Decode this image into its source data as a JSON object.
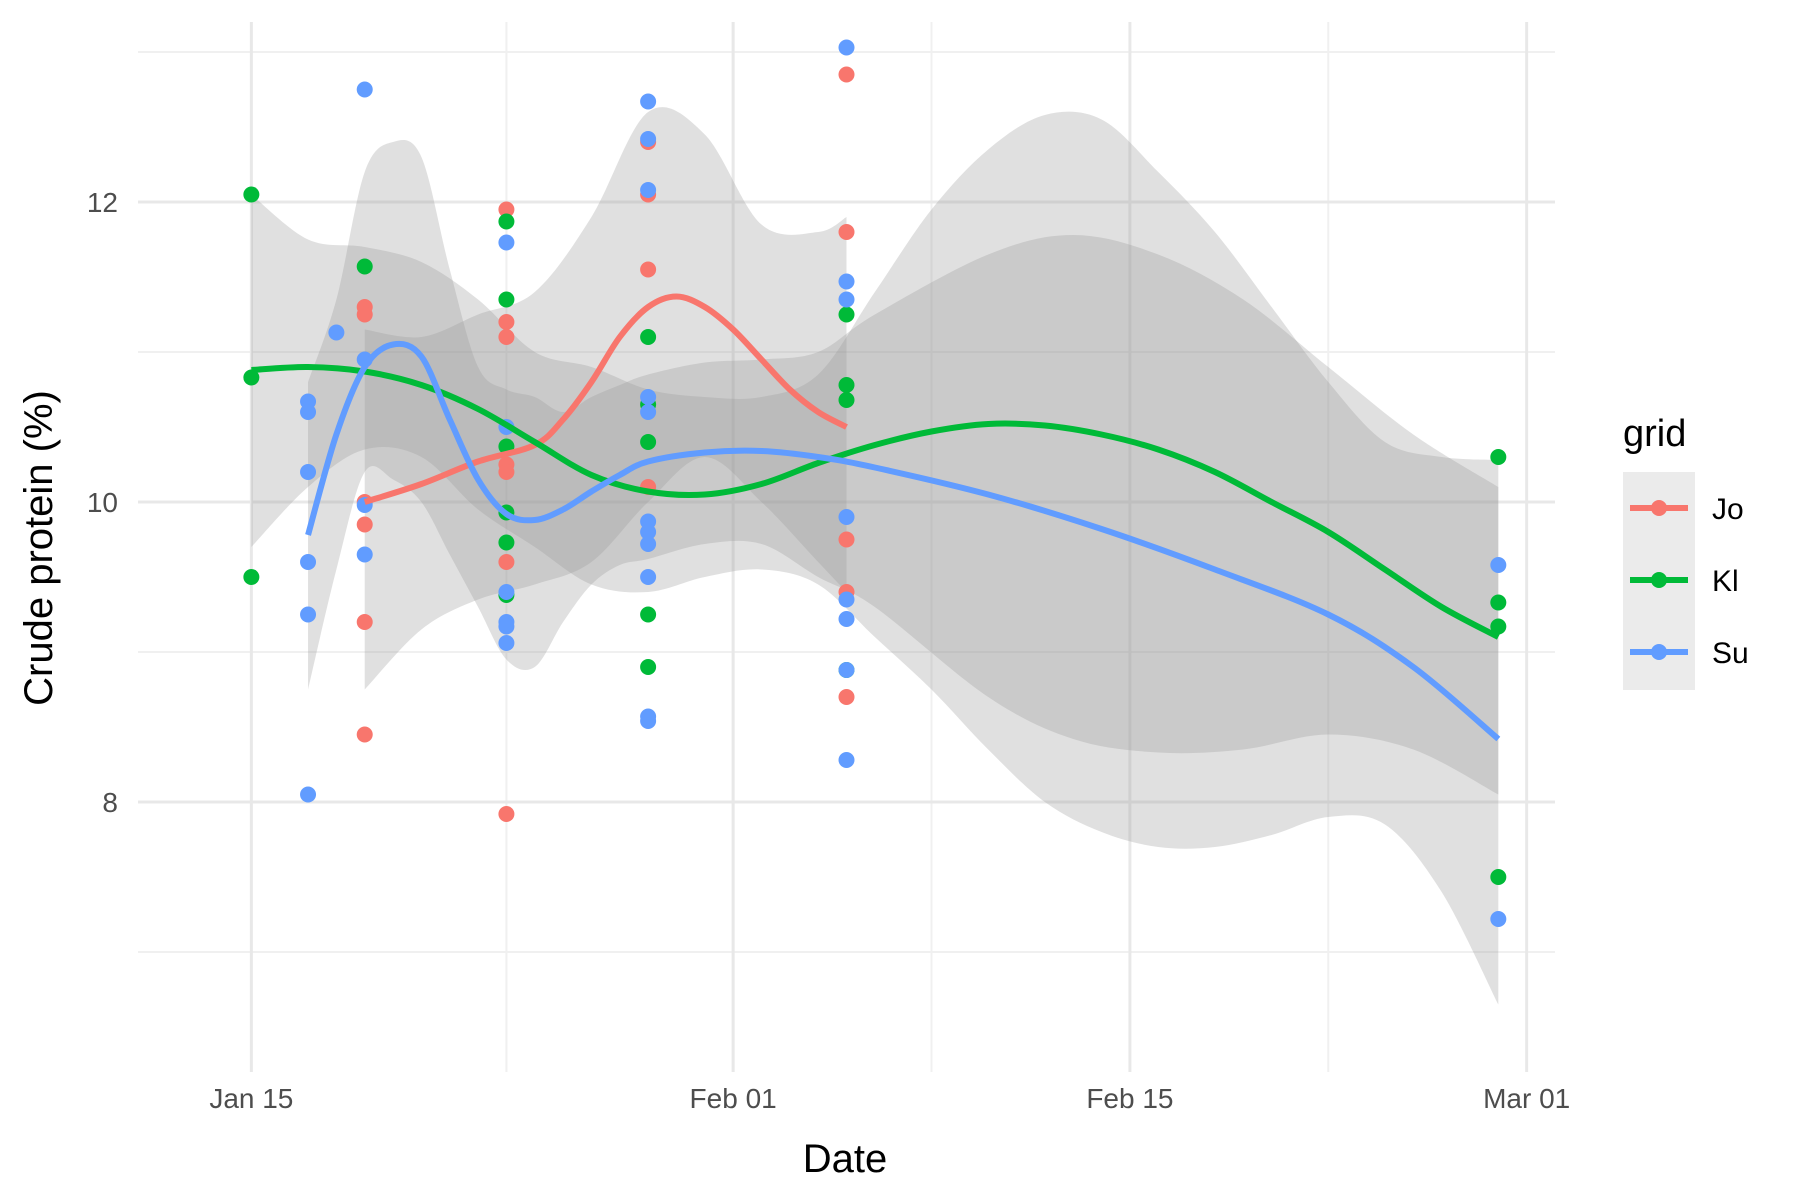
{
  "chart_data": {
    "type": "scatter",
    "title": "",
    "xlabel": "Date",
    "ylabel": "Crude protein (%)",
    "x_type": "date",
    "xlim": [
      "2023-01-11",
      "2023-03-02"
    ],
    "ylim": [
      6.2,
      13.2
    ],
    "x_ticks": [
      {
        "date": "2023-01-15",
        "label": "Jan 15"
      },
      {
        "date": "2023-02-01",
        "label": "Feb 01"
      },
      {
        "date": "2023-02-15",
        "label": "Feb 15"
      },
      {
        "date": "2023-03-01",
        "label": "Mar 01"
      }
    ],
    "x_minor_ticks": [
      "2023-01-24",
      "2023-02-08",
      "2023-02-22"
    ],
    "y_ticks": [
      8,
      10,
      12
    ],
    "y_minor_ticks": [
      7,
      9,
      11,
      13
    ],
    "grid": true,
    "smooth": "loess with confidence band",
    "legend": {
      "title": "grid",
      "position": "right"
    },
    "series": [
      {
        "name": "Jo",
        "color": "#F8766D",
        "points": [
          {
            "x": "2023-01-19",
            "y": 11.3
          },
          {
            "x": "2023-01-19",
            "y": 11.25
          },
          {
            "x": "2023-01-19",
            "y": 10.0
          },
          {
            "x": "2023-01-19",
            "y": 9.85
          },
          {
            "x": "2023-01-19",
            "y": 9.2
          },
          {
            "x": "2023-01-19",
            "y": 8.45
          },
          {
            "x": "2023-01-24",
            "y": 11.95
          },
          {
            "x": "2023-01-24",
            "y": 11.2
          },
          {
            "x": "2023-01-24",
            "y": 11.1
          },
          {
            "x": "2023-01-24",
            "y": 10.25
          },
          {
            "x": "2023-01-24",
            "y": 10.2
          },
          {
            "x": "2023-01-24",
            "y": 9.6
          },
          {
            "x": "2023-01-24",
            "y": 7.92
          },
          {
            "x": "2023-01-29",
            "y": 12.05
          },
          {
            "x": "2023-01-29",
            "y": 11.55
          },
          {
            "x": "2023-01-29",
            "y": 10.1
          },
          {
            "x": "2023-01-29",
            "y": 12.4
          },
          {
            "x": "2023-02-05",
            "y": 12.85
          },
          {
            "x": "2023-02-05",
            "y": 11.8
          },
          {
            "x": "2023-02-05",
            "y": 9.75
          },
          {
            "x": "2023-02-05",
            "y": 9.4
          },
          {
            "x": "2023-02-05",
            "y": 8.7
          }
        ],
        "smooth": [
          {
            "x": "2023-01-19",
            "y": 10.0
          },
          {
            "x": "2023-01-21",
            "y": 10.12
          },
          {
            "x": "2023-01-23",
            "y": 10.27
          },
          {
            "x": "2023-01-25",
            "y": 10.38
          },
          {
            "x": "2023-01-26",
            "y": 10.55
          },
          {
            "x": "2023-01-27",
            "y": 10.8
          },
          {
            "x": "2023-01-28",
            "y": 11.1
          },
          {
            "x": "2023-01-29",
            "y": 11.3
          },
          {
            "x": "2023-01-30",
            "y": 11.37
          },
          {
            "x": "2023-01-31",
            "y": 11.3
          },
          {
            "x": "2023-02-01",
            "y": 11.15
          },
          {
            "x": "2023-02-02",
            "y": 10.95
          },
          {
            "x": "2023-02-03",
            "y": 10.75
          },
          {
            "x": "2023-02-04",
            "y": 10.6
          },
          {
            "x": "2023-02-05",
            "y": 10.5
          }
        ],
        "band": [
          {
            "x": "2023-01-19",
            "lo": 8.75,
            "hi": 11.15
          },
          {
            "x": "2023-01-21",
            "lo": 9.15,
            "hi": 11.1
          },
          {
            "x": "2023-01-23",
            "lo": 9.35,
            "hi": 11.25
          },
          {
            "x": "2023-01-25",
            "lo": 9.45,
            "hi": 11.4
          },
          {
            "x": "2023-01-27",
            "lo": 9.6,
            "hi": 11.9
          },
          {
            "x": "2023-01-29",
            "lo": 10.0,
            "hi": 12.6
          },
          {
            "x": "2023-01-31",
            "lo": 10.3,
            "hi": 12.45
          },
          {
            "x": "2023-02-02",
            "lo": 10.0,
            "hi": 11.85
          },
          {
            "x": "2023-02-04",
            "lo": 9.6,
            "hi": 11.8
          },
          {
            "x": "2023-02-05",
            "lo": 9.4,
            "hi": 11.9
          }
        ]
      },
      {
        "name": "Kl",
        "color": "#00BA38",
        "points": [
          {
            "x": "2023-01-15",
            "y": 12.05
          },
          {
            "x": "2023-01-15",
            "y": 10.83
          },
          {
            "x": "2023-01-15",
            "y": 9.5
          },
          {
            "x": "2023-01-19",
            "y": 11.57
          },
          {
            "x": "2023-01-24",
            "y": 11.87
          },
          {
            "x": "2023-01-24",
            "y": 11.35
          },
          {
            "x": "2023-01-24",
            "y": 10.37
          },
          {
            "x": "2023-01-24",
            "y": 9.93
          },
          {
            "x": "2023-01-24",
            "y": 9.73
          },
          {
            "x": "2023-01-24",
            "y": 9.38
          },
          {
            "x": "2023-01-29",
            "y": 11.1
          },
          {
            "x": "2023-01-29",
            "y": 10.65
          },
          {
            "x": "2023-01-29",
            "y": 10.4
          },
          {
            "x": "2023-01-29",
            "y": 9.25
          },
          {
            "x": "2023-01-29",
            "y": 8.9
          },
          {
            "x": "2023-02-05",
            "y": 11.25
          },
          {
            "x": "2023-02-05",
            "y": 10.78
          },
          {
            "x": "2023-02-05",
            "y": 10.68
          },
          {
            "x": "2023-02-05",
            "y": 8.88
          },
          {
            "x": "2023-02-28",
            "y": 10.3
          },
          {
            "x": "2023-02-28",
            "y": 9.33
          },
          {
            "x": "2023-02-28",
            "y": 9.17
          },
          {
            "x": "2023-02-28",
            "y": 7.5
          }
        ],
        "smooth": [
          {
            "x": "2023-01-15",
            "y": 10.88
          },
          {
            "x": "2023-01-17",
            "y": 10.9
          },
          {
            "x": "2023-01-19",
            "y": 10.87
          },
          {
            "x": "2023-01-21",
            "y": 10.78
          },
          {
            "x": "2023-01-23",
            "y": 10.62
          },
          {
            "x": "2023-01-25",
            "y": 10.4
          },
          {
            "x": "2023-01-27",
            "y": 10.18
          },
          {
            "x": "2023-01-29",
            "y": 10.07
          },
          {
            "x": "2023-01-31",
            "y": 10.05
          },
          {
            "x": "2023-02-02",
            "y": 10.12
          },
          {
            "x": "2023-02-04",
            "y": 10.26
          },
          {
            "x": "2023-02-06",
            "y": 10.38
          },
          {
            "x": "2023-02-08",
            "y": 10.47
          },
          {
            "x": "2023-02-10",
            "y": 10.52
          },
          {
            "x": "2023-02-12",
            "y": 10.51
          },
          {
            "x": "2023-02-14",
            "y": 10.45
          },
          {
            "x": "2023-02-16",
            "y": 10.35
          },
          {
            "x": "2023-02-18",
            "y": 10.2
          },
          {
            "x": "2023-02-20",
            "y": 10.0
          },
          {
            "x": "2023-02-22",
            "y": 9.8
          },
          {
            "x": "2023-02-24",
            "y": 9.55
          },
          {
            "x": "2023-02-26",
            "y": 9.3
          },
          {
            "x": "2023-02-28",
            "y": 9.1
          }
        ],
        "band": [
          {
            "x": "2023-01-15",
            "lo": 9.7,
            "hi": 12.05
          },
          {
            "x": "2023-01-17",
            "lo": 10.1,
            "hi": 11.75
          },
          {
            "x": "2023-01-19",
            "lo": 10.35,
            "hi": 11.7
          },
          {
            "x": "2023-01-21",
            "lo": 10.3,
            "hi": 11.6
          },
          {
            "x": "2023-01-23",
            "lo": 9.95,
            "hi": 11.35
          },
          {
            "x": "2023-01-25",
            "lo": 9.7,
            "hi": 11.0
          },
          {
            "x": "2023-01-27",
            "lo": 9.45,
            "hi": 10.9
          },
          {
            "x": "2023-01-29",
            "lo": 9.4,
            "hi": 10.75
          },
          {
            "x": "2023-01-31",
            "lo": 9.5,
            "hi": 10.7
          },
          {
            "x": "2023-02-02",
            "lo": 9.55,
            "hi": 10.7
          },
          {
            "x": "2023-02-04",
            "lo": 9.45,
            "hi": 10.85
          },
          {
            "x": "2023-02-06",
            "lo": 9.1,
            "hi": 11.4
          },
          {
            "x": "2023-02-08",
            "lo": 8.75,
            "hi": 11.95
          },
          {
            "x": "2023-02-10",
            "lo": 8.35,
            "hi": 12.35
          },
          {
            "x": "2023-02-12",
            "lo": 8.0,
            "hi": 12.58
          },
          {
            "x": "2023-02-14",
            "lo": 7.8,
            "hi": 12.55
          },
          {
            "x": "2023-02-16",
            "lo": 7.7,
            "hi": 12.2
          },
          {
            "x": "2023-02-18",
            "lo": 7.7,
            "hi": 11.8
          },
          {
            "x": "2023-02-20",
            "lo": 7.78,
            "hi": 11.3
          },
          {
            "x": "2023-02-22",
            "lo": 7.9,
            "hi": 10.8
          },
          {
            "x": "2023-02-24",
            "lo": 7.85,
            "hi": 10.4
          },
          {
            "x": "2023-02-26",
            "lo": 7.4,
            "hi": 10.3
          },
          {
            "x": "2023-02-28",
            "lo": 6.65,
            "hi": 10.28
          }
        ]
      },
      {
        "name": "Su",
        "color": "#619CFF",
        "points": [
          {
            "x": "2023-01-17",
            "y": 10.67
          },
          {
            "x": "2023-01-17",
            "y": 10.6
          },
          {
            "x": "2023-01-17",
            "y": 10.2
          },
          {
            "x": "2023-01-17",
            "y": 9.6
          },
          {
            "x": "2023-01-17",
            "y": 9.25
          },
          {
            "x": "2023-01-17",
            "y": 8.05
          },
          {
            "x": "2023-01-18",
            "y": 11.13
          },
          {
            "x": "2023-01-19",
            "y": 12.75
          },
          {
            "x": "2023-01-19",
            "y": 10.95
          },
          {
            "x": "2023-01-19",
            "y": 9.98
          },
          {
            "x": "2023-01-19",
            "y": 9.65
          },
          {
            "x": "2023-01-24",
            "y": 11.73
          },
          {
            "x": "2023-01-24",
            "y": 10.5
          },
          {
            "x": "2023-01-24",
            "y": 9.4
          },
          {
            "x": "2023-01-24",
            "y": 9.2
          },
          {
            "x": "2023-01-24",
            "y": 9.17
          },
          {
            "x": "2023-01-24",
            "y": 9.06
          },
          {
            "x": "2023-01-29",
            "y": 12.67
          },
          {
            "x": "2023-01-29",
            "y": 12.42
          },
          {
            "x": "2023-01-29",
            "y": 12.08
          },
          {
            "x": "2023-01-29",
            "y": 10.7
          },
          {
            "x": "2023-01-29",
            "y": 10.6
          },
          {
            "x": "2023-01-29",
            "y": 9.87
          },
          {
            "x": "2023-01-29",
            "y": 9.8
          },
          {
            "x": "2023-01-29",
            "y": 9.72
          },
          {
            "x": "2023-01-29",
            "y": 9.5
          },
          {
            "x": "2023-01-29",
            "y": 8.57
          },
          {
            "x": "2023-01-29",
            "y": 8.54
          },
          {
            "x": "2023-02-05",
            "y": 13.03
          },
          {
            "x": "2023-02-05",
            "y": 11.47
          },
          {
            "x": "2023-02-05",
            "y": 11.35
          },
          {
            "x": "2023-02-05",
            "y": 9.9
          },
          {
            "x": "2023-02-05",
            "y": 9.35
          },
          {
            "x": "2023-02-05",
            "y": 9.22
          },
          {
            "x": "2023-02-05",
            "y": 8.88
          },
          {
            "x": "2023-02-05",
            "y": 8.28
          },
          {
            "x": "2023-02-28",
            "y": 9.58
          },
          {
            "x": "2023-02-28",
            "y": 7.22
          }
        ],
        "smooth": [
          {
            "x": "2023-01-17",
            "y": 9.78
          },
          {
            "x": "2023-01-18",
            "y": 10.45
          },
          {
            "x": "2023-01-19",
            "y": 10.9
          },
          {
            "x": "2023-01-20",
            "y": 11.05
          },
          {
            "x": "2023-01-21",
            "y": 10.97
          },
          {
            "x": "2023-01-22",
            "y": 10.55
          },
          {
            "x": "2023-01-23",
            "y": 10.15
          },
          {
            "x": "2023-01-24",
            "y": 9.92
          },
          {
            "x": "2023-01-25",
            "y": 9.88
          },
          {
            "x": "2023-01-26",
            "y": 9.95
          },
          {
            "x": "2023-01-27",
            "y": 10.07
          },
          {
            "x": "2023-01-28",
            "y": 10.18
          },
          {
            "x": "2023-01-29",
            "y": 10.27
          },
          {
            "x": "2023-01-31",
            "y": 10.33
          },
          {
            "x": "2023-02-02",
            "y": 10.34
          },
          {
            "x": "2023-02-04",
            "y": 10.3
          },
          {
            "x": "2023-02-06",
            "y": 10.23
          },
          {
            "x": "2023-02-10",
            "y": 10.05
          },
          {
            "x": "2023-02-14",
            "y": 9.82
          },
          {
            "x": "2023-02-18",
            "y": 9.55
          },
          {
            "x": "2023-02-22",
            "y": 9.25
          },
          {
            "x": "2023-02-25",
            "y": 8.9
          },
          {
            "x": "2023-02-28",
            "y": 8.42
          }
        ],
        "band": [
          {
            "x": "2023-01-17",
            "lo": 8.75,
            "hi": 10.8
          },
          {
            "x": "2023-01-18",
            "lo": 9.55,
            "hi": 11.35
          },
          {
            "x": "2023-01-19",
            "lo": 10.2,
            "hi": 12.2
          },
          {
            "x": "2023-01-20",
            "lo": 10.15,
            "hi": 12.4
          },
          {
            "x": "2023-01-21",
            "lo": 10.0,
            "hi": 12.3
          },
          {
            "x": "2023-01-22",
            "lo": 9.65,
            "hi": 11.55
          },
          {
            "x": "2023-01-23",
            "lo": 9.3,
            "hi": 10.9
          },
          {
            "x": "2023-01-24",
            "lo": 8.95,
            "hi": 10.75
          },
          {
            "x": "2023-01-25",
            "lo": 8.9,
            "hi": 10.7
          },
          {
            "x": "2023-01-26",
            "lo": 9.2,
            "hi": 10.6
          },
          {
            "x": "2023-01-27",
            "lo": 9.45,
            "hi": 10.7
          },
          {
            "x": "2023-01-28",
            "lo": 9.58,
            "hi": 10.78
          },
          {
            "x": "2023-01-29",
            "lo": 9.62,
            "hi": 10.85
          },
          {
            "x": "2023-01-31",
            "lo": 9.72,
            "hi": 10.93
          },
          {
            "x": "2023-02-02",
            "lo": 9.72,
            "hi": 10.95
          },
          {
            "x": "2023-02-04",
            "lo": 9.5,
            "hi": 11.0
          },
          {
            "x": "2023-02-06",
            "lo": 9.3,
            "hi": 11.25
          },
          {
            "x": "2023-02-10",
            "lo": 8.7,
            "hi": 11.65
          },
          {
            "x": "2023-02-13",
            "lo": 8.42,
            "hi": 11.78
          },
          {
            "x": "2023-02-16",
            "lo": 8.33,
            "hi": 11.65
          },
          {
            "x": "2023-02-19",
            "lo": 8.35,
            "hi": 11.35
          },
          {
            "x": "2023-02-22",
            "lo": 8.45,
            "hi": 10.9
          },
          {
            "x": "2023-02-25",
            "lo": 8.35,
            "hi": 10.45
          },
          {
            "x": "2023-02-28",
            "lo": 8.05,
            "hi": 10.1
          }
        ]
      }
    ]
  }
}
